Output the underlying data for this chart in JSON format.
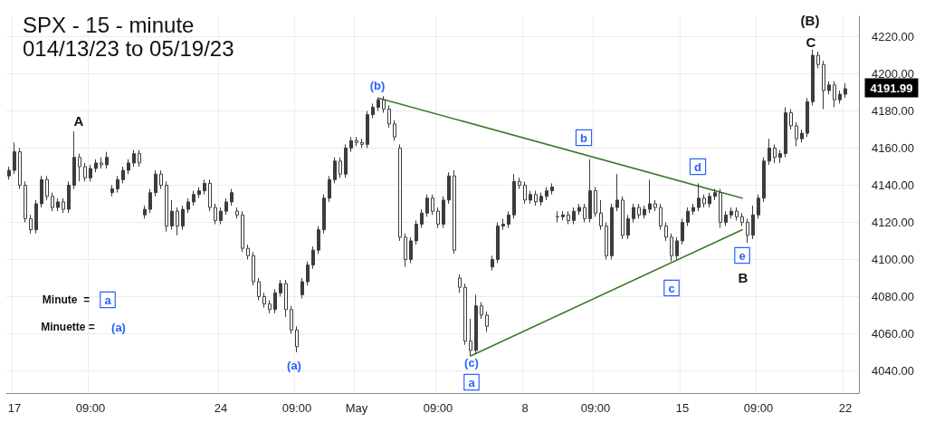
{
  "chart_data": {
    "type": "candlestick",
    "title": "SPX - 15 - minute",
    "subtitle": "014/13/23 to 05/19/23",
    "categories": [
      null,
      "17",
      null,
      null,
      null,
      null,
      null,
      null,
      null,
      null,
      null,
      null,
      null,
      null,
      null,
      "09:00",
      null,
      null,
      null,
      null,
      null,
      null,
      null,
      null,
      null,
      null,
      null,
      null,
      null,
      null,
      null,
      null,
      null,
      null,
      null,
      null,
      null,
      null,
      null,
      "24",
      null,
      null,
      null,
      null,
      null,
      null,
      null,
      null,
      null,
      null,
      null,
      null,
      null,
      "09:00",
      null,
      null,
      null,
      null,
      null,
      null,
      null,
      null,
      null,
      null,
      "May",
      null,
      null,
      null,
      null,
      null,
      null,
      null,
      null,
      null,
      null,
      null,
      null,
      null,
      null,
      "09:00",
      null,
      null,
      null,
      null,
      null,
      null,
      null,
      null,
      null,
      null,
      null,
      null,
      null,
      null,
      null,
      "8",
      null,
      null,
      null,
      null,
      null,
      null,
      null,
      null,
      null,
      null,
      null,
      null,
      "09:00",
      null,
      null,
      null,
      null,
      null,
      null,
      null,
      null,
      null,
      null,
      null,
      null,
      null,
      null,
      null,
      "15",
      null,
      null,
      null,
      null,
      null,
      null,
      null,
      null,
      null,
      null,
      null,
      null,
      null,
      "09:00",
      null,
      null,
      null,
      null,
      null,
      null,
      null,
      null,
      null,
      null,
      null,
      null,
      null,
      null,
      null,
      "22",
      null,
      null
    ],
    "color": "#3c3c3c",
    "ohlc": [
      [
        4145,
        4150,
        4143,
        4148
      ],
      [
        4148,
        4163,
        4146,
        4158
      ],
      [
        4158,
        4160,
        4138,
        4140
      ],
      [
        4140,
        4142,
        4120,
        4122
      ],
      [
        4122,
        4124,
        4114,
        4116
      ],
      [
        4116,
        4132,
        4114,
        4130
      ],
      [
        4130,
        4145,
        4128,
        4143
      ],
      [
        4143,
        4145,
        4132,
        4134
      ],
      [
        4134,
        4136,
        4126,
        4128
      ],
      [
        4128,
        4133,
        4126,
        4131
      ],
      [
        4131,
        4133,
        4125,
        4127
      ],
      [
        4127,
        4142,
        4125,
        4140
      ],
      [
        4140,
        4169,
        4138,
        4155
      ],
      [
        4155,
        4157,
        4142,
        4150
      ],
      [
        4150,
        4152,
        4142,
        4144
      ],
      [
        4144,
        4151,
        4142,
        4149
      ],
      [
        4149,
        4154,
        4147,
        4152
      ],
      [
        4152,
        4155,
        4149,
        4151
      ],
      [
        4151,
        4158,
        4149,
        4155
      ],
      [
        4136,
        4140,
        4134,
        4138
      ],
      [
        4138,
        4145,
        4136,
        4143
      ],
      [
        4143,
        4150,
        4141,
        4148
      ],
      [
        4148,
        4154,
        4146,
        4152
      ],
      [
        4152,
        4159,
        4150,
        4157
      ],
      [
        4157,
        4159,
        4150,
        4152
      ],
      [
        4124,
        4129,
        4122,
        4127
      ],
      [
        4127,
        4138,
        4125,
        4136
      ],
      [
        4136,
        4148,
        4134,
        4146
      ],
      [
        4146,
        4148,
        4138,
        4140
      ],
      [
        4140,
        4142,
        4115,
        4118
      ],
      [
        4118,
        4132,
        4116,
        4126
      ],
      [
        4126,
        4128,
        4113,
        4118
      ],
      [
        4118,
        4129,
        4116,
        4127
      ],
      [
        4127,
        4133,
        4125,
        4131
      ],
      [
        4131,
        4137,
        4129,
        4135
      ],
      [
        4135,
        4139,
        4133,
        4137
      ],
      [
        4137,
        4143,
        4135,
        4141
      ],
      [
        4141,
        4143,
        4126,
        4128
      ],
      [
        4128,
        4130,
        4119,
        4121
      ],
      [
        4121,
        4128,
        4119,
        4126
      ],
      [
        4126,
        4133,
        4124,
        4131
      ],
      [
        4131,
        4138,
        4129,
        4136
      ],
      [
        4126,
        4128,
        4122,
        4124
      ],
      [
        4124,
        4126,
        4104,
        4106
      ],
      [
        4106,
        4108,
        4100,
        4102
      ],
      [
        4102,
        4104,
        4086,
        4088
      ],
      [
        4088,
        4090,
        4078,
        4080
      ],
      [
        4080,
        4082,
        4074,
        4076
      ],
      [
        4076,
        4078,
        4071,
        4073
      ],
      [
        4073,
        4084,
        4071,
        4082
      ],
      [
        4082,
        4089,
        4080,
        4087
      ],
      [
        4087,
        4089,
        4069,
        4073
      ],
      [
        4073,
        4075,
        4060,
        4062
      ],
      [
        4062,
        4064,
        4050,
        4053
      ],
      [
        4081,
        4090,
        4079,
        4088
      ],
      [
        4088,
        4099,
        4086,
        4097
      ],
      [
        4097,
        4107,
        4095,
        4105
      ],
      [
        4105,
        4118,
        4103,
        4116
      ],
      [
        4116,
        4135,
        4114,
        4133
      ],
      [
        4133,
        4145,
        4131,
        4143
      ],
      [
        4143,
        4155,
        4141,
        4153
      ],
      [
        4153,
        4155,
        4144,
        4146
      ],
      [
        4146,
        4162,
        4144,
        4160
      ],
      [
        4160,
        4166,
        4158,
        4164
      ],
      [
        4164,
        4166,
        4161,
        4163
      ],
      [
        4163,
        4165,
        4160,
        4162
      ],
      [
        4162,
        4180,
        4160,
        4178
      ],
      [
        4178,
        4184,
        4176,
        4182
      ],
      [
        4182,
        4187,
        4180,
        4186
      ],
      [
        4186,
        4188,
        4179,
        4181
      ],
      [
        4181,
        4183,
        4171,
        4173
      ],
      [
        4173,
        4175,
        4164,
        4166
      ],
      [
        4160,
        4162,
        4110,
        4112
      ],
      [
        4112,
        4114,
        4096,
        4100
      ],
      [
        4100,
        4112,
        4098,
        4110
      ],
      [
        4110,
        4121,
        4108,
        4119
      ],
      [
        4119,
        4127,
        4117,
        4125
      ],
      [
        4125,
        4135,
        4123,
        4133
      ],
      [
        4133,
        4135,
        4124,
        4126
      ],
      [
        4126,
        4128,
        4117,
        4119
      ],
      [
        4119,
        4134,
        4117,
        4132
      ],
      [
        4132,
        4147,
        4130,
        4145
      ],
      [
        4145,
        4148,
        4103,
        4105
      ],
      [
        4090,
        4092,
        4082,
        4085
      ],
      [
        4085,
        4087,
        4054,
        4056
      ],
      [
        4056,
        4068,
        4048,
        4051
      ],
      [
        4051,
        4081,
        4049,
        4075
      ],
      [
        4075,
        4077,
        4068,
        4070
      ],
      [
        4070,
        4072,
        4061,
        4064
      ],
      [
        4096,
        4102,
        4094,
        4100
      ],
      [
        4100,
        4120,
        4098,
        4118
      ],
      [
        4118,
        4122,
        4116,
        4119
      ],
      [
        4119,
        4126,
        4117,
        4124
      ],
      [
        4124,
        4146,
        4122,
        4142
      ],
      [
        4142,
        4144,
        4138,
        4140
      ],
      [
        4140,
        4142,
        4130,
        4132
      ],
      [
        4132,
        4137,
        4130,
        4135
      ],
      [
        4135,
        4137,
        4129,
        4131
      ],
      [
        4131,
        4136,
        4129,
        4134
      ],
      [
        4134,
        4139,
        4132,
        4137
      ],
      [
        4137,
        4141,
        4135,
        4139
      ],
      [
        4123,
        4126,
        4120,
        4123
      ],
      [
        4123,
        4126,
        4121,
        4124
      ],
      [
        4124,
        4126,
        4119,
        4121
      ],
      [
        4121,
        4128,
        4119,
        4126
      ],
      [
        4126,
        4130,
        4124,
        4128
      ],
      [
        4128,
        4130,
        4120,
        4122
      ],
      [
        4122,
        4154,
        4120,
        4137
      ],
      [
        4137,
        4139,
        4123,
        4125
      ],
      [
        4125,
        4132,
        4116,
        4118
      ],
      [
        4118,
        4120,
        4100,
        4102
      ],
      [
        4102,
        4130,
        4100,
        4128
      ],
      [
        4128,
        4146,
        4126,
        4132
      ],
      [
        4132,
        4134,
        4111,
        4113
      ],
      [
        4113,
        4124,
        4111,
        4122
      ],
      [
        4122,
        4130,
        4120,
        4128
      ],
      [
        4128,
        4130,
        4122,
        4124
      ],
      [
        4124,
        4129,
        4122,
        4127
      ],
      [
        4127,
        4143,
        4125,
        4130
      ],
      [
        4130,
        4132,
        4126,
        4128
      ],
      [
        4128,
        4130,
        4116,
        4118
      ],
      [
        4118,
        4120,
        4110,
        4112
      ],
      [
        4112,
        4114,
        4099,
        4102
      ],
      [
        4102,
        4112,
        4100,
        4110
      ],
      [
        4110,
        4122,
        4108,
        4120
      ],
      [
        4120,
        4128,
        4118,
        4126
      ],
      [
        4126,
        4130,
        4124,
        4128
      ],
      [
        4128,
        4141,
        4126,
        4133
      ],
      [
        4133,
        4135,
        4128,
        4130
      ],
      [
        4130,
        4136,
        4128,
        4134
      ],
      [
        4134,
        4138,
        4132,
        4136
      ],
      [
        4136,
        4138,
        4117,
        4120
      ],
      [
        4120,
        4126,
        4118,
        4124
      ],
      [
        4124,
        4128,
        4122,
        4126
      ],
      [
        4126,
        4128,
        4121,
        4123
      ],
      [
        4123,
        4125,
        4118,
        4120
      ],
      [
        4120,
        4122,
        4109,
        4113
      ],
      [
        4113,
        4129,
        4111,
        4124
      ],
      [
        4124,
        4135,
        4122,
        4133
      ],
      [
        4133,
        4155,
        4131,
        4153
      ],
      [
        4153,
        4165,
        4151,
        4160
      ],
      [
        4160,
        4162,
        4152,
        4155
      ],
      [
        4155,
        4159,
        4152,
        4157
      ],
      [
        4157,
        4182,
        4155,
        4179
      ],
      [
        4179,
        4181,
        4170,
        4172
      ],
      [
        4172,
        4174,
        4161,
        4165
      ],
      [
        4165,
        4170,
        4163,
        4168
      ],
      [
        4168,
        4187,
        4166,
        4185
      ],
      [
        4185,
        4213,
        4183,
        4210
      ],
      [
        4210,
        4212,
        4203,
        4205
      ],
      [
        4205,
        4207,
        4181,
        4191
      ],
      [
        4191,
        4196,
        4189,
        4194
      ],
      [
        4194,
        4196,
        4182,
        4186
      ],
      [
        4186,
        4191,
        4184,
        4189
      ],
      [
        4189,
        4195,
        4187,
        4191.99
      ],
      null,
      null
    ],
    "series": [
      {
        "type": "line",
        "color": "#3b7a2a",
        "values": [
          null,
          null,
          null,
          null,
          null,
          null,
          null,
          null,
          null,
          null,
          null,
          null,
          null,
          null,
          null,
          null,
          null,
          null,
          null,
          null,
          null,
          null,
          null,
          null,
          null,
          null,
          null,
          null,
          null,
          null,
          null,
          null,
          null,
          null,
          null,
          null,
          null,
          null,
          null,
          null,
          null,
          null,
          null,
          null,
          null,
          null,
          null,
          null,
          null,
          null,
          null,
          null,
          null,
          null,
          null,
          null,
          null,
          null,
          null,
          null,
          null,
          null,
          null,
          null,
          null,
          null,
          null,
          null,
          4187,
          null,
          null,
          null,
          null,
          null,
          null,
          null,
          null,
          null,
          null,
          null,
          null,
          null,
          null,
          null,
          null,
          null,
          null,
          null,
          null,
          null,
          null,
          null,
          null,
          null,
          null,
          null,
          null,
          null,
          null,
          null,
          null,
          null,
          null,
          null,
          null,
          null,
          null,
          null,
          null,
          null,
          null,
          null,
          null,
          null,
          null,
          null,
          null,
          null,
          null,
          null,
          null,
          null,
          null,
          null,
          null,
          null,
          null,
          null,
          null,
          null,
          null,
          null,
          null,
          null,
          null,
          4133,
          null,
          null,
          null,
          null,
          null,
          null,
          null,
          null,
          null,
          null,
          null,
          null,
          null,
          null,
          null,
          null,
          null,
          null,
          null,
          null,
          null
        ]
      },
      {
        "type": "line",
        "color": "#3b7a2a",
        "values": [
          null,
          null,
          null,
          null,
          null,
          null,
          null,
          null,
          null,
          null,
          null,
          null,
          null,
          null,
          null,
          null,
          null,
          null,
          null,
          null,
          null,
          null,
          null,
          null,
          null,
          null,
          null,
          null,
          null,
          null,
          null,
          null,
          null,
          null,
          null,
          null,
          null,
          null,
          null,
          null,
          null,
          null,
          null,
          null,
          null,
          null,
          null,
          null,
          null,
          null,
          null,
          null,
          null,
          null,
          null,
          null,
          null,
          null,
          null,
          null,
          null,
          null,
          null,
          null,
          null,
          null,
          null,
          null,
          null,
          null,
          null,
          null,
          null,
          null,
          null,
          null,
          null,
          null,
          null,
          null,
          null,
          null,
          null,
          null,
          null,
          4048,
          null,
          null,
          null,
          null,
          null,
          null,
          null,
          null,
          null,
          null,
          null,
          null,
          null,
          null,
          null,
          null,
          null,
          null,
          null,
          null,
          null,
          null,
          null,
          null,
          null,
          null,
          null,
          null,
          null,
          null,
          null,
          null,
          null,
          null,
          null,
          null,
          null,
          null,
          null,
          null,
          null,
          null,
          null,
          null,
          null,
          null,
          null,
          null,
          null,
          4116,
          null,
          null,
          null,
          null,
          null,
          null,
          null,
          null,
          null,
          null,
          null,
          null,
          null,
          null,
          null,
          null,
          null,
          null,
          null,
          null,
          null
        ]
      }
    ],
    "ylim": [
      4028,
      4231
    ],
    "yticks": [
      {
        "value": 4040,
        "label": "4040.00"
      },
      {
        "value": 4060,
        "label": "4060.00"
      },
      {
        "value": 4080,
        "label": "4080.00"
      },
      {
        "value": 4100,
        "label": "4100.00"
      },
      {
        "value": 4120,
        "label": "4120.00"
      },
      {
        "value": 4140,
        "label": "4140.00"
      },
      {
        "value": 4160,
        "label": "4160.00"
      },
      {
        "value": 4180,
        "label": "4180.00"
      },
      {
        "value": 4200,
        "label": "4200.00"
      },
      {
        "value": 4220,
        "label": "4220.00"
      }
    ],
    "grid": true,
    "annotations": [
      "A",
      "(b)",
      "b",
      "d",
      "e",
      "B",
      "(B)",
      "C",
      "(a)",
      "(c)",
      "a",
      "c",
      "Minute  =",
      "a",
      "Minuette =",
      "(a)",
      "4191.99"
    ]
  }
}
